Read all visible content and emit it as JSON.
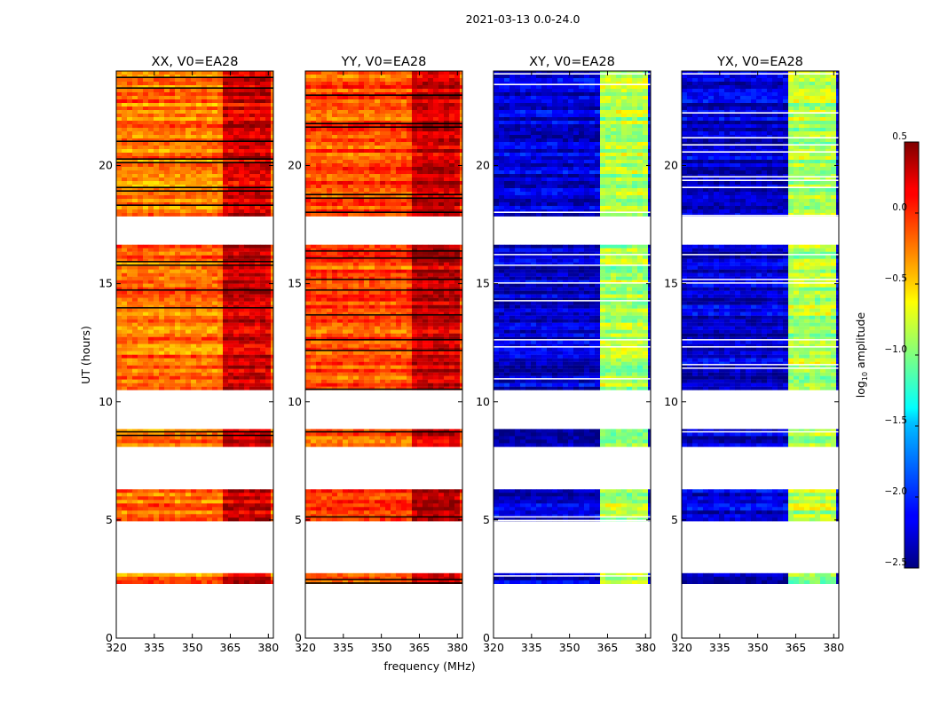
{
  "chart_data": {
    "type": "heatmap",
    "title": "2021-03-13 0.0-24.0",
    "xlabel": "frequency (MHz)",
    "ylabel": "UT (hours)",
    "xlim": [
      320,
      382
    ],
    "ylim": [
      0,
      24
    ],
    "x_ticks": [
      320,
      335,
      350,
      365,
      380
    ],
    "y_ticks": [
      0,
      5,
      10,
      15,
      20
    ],
    "colorbar": {
      "label": "log10 amplitude",
      "label_base": "log",
      "label_sub": "10",
      "label_rest": " amplitude",
      "range": [
        -2.5,
        0.5
      ],
      "ticks": [
        "0.5",
        "0.0",
        "−0.5",
        "−1.0",
        "−1.5",
        "−2.0",
        "−2.5"
      ],
      "colormap": "jet"
    },
    "data_hour_ranges": [
      [
        2.3,
        2.75
      ],
      [
        4.95,
        6.3
      ],
      [
        8.1,
        8.85
      ],
      [
        10.5,
        16.65
      ],
      [
        17.85,
        24.0
      ]
    ],
    "panels": [
      {
        "title": "XX, V0=EA28",
        "base_level": 0.76,
        "band_level": 0.92,
        "band_mhz": [
          362,
          380
        ]
      },
      {
        "title": "YY, V0=EA28",
        "base_level": 0.8,
        "band_level": 0.93,
        "band_mhz": [
          362,
          380
        ]
      },
      {
        "title": "XY, V0=EA28",
        "base_level": 0.08,
        "band_level": 0.55,
        "band_mhz": [
          362,
          380
        ]
      },
      {
        "title": "YX, V0=EA28",
        "base_level": 0.08,
        "band_level": 0.55,
        "band_mhz": [
          362,
          380
        ]
      }
    ]
  }
}
